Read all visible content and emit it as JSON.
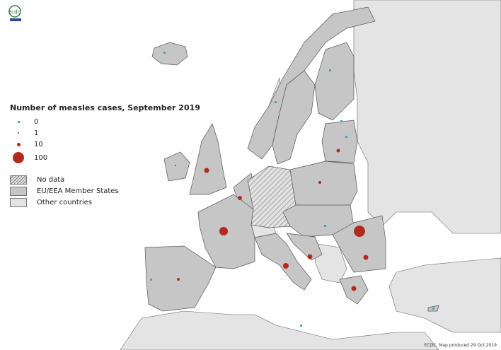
{
  "logo": {
    "text": "ecdc"
  },
  "legend": {
    "title": "Number of measles cases, September 2019",
    "sizes": [
      {
        "label": "0",
        "color": "#4aa3b5"
      },
      {
        "label": "1",
        "color": "#b22a1e"
      },
      {
        "label": "10",
        "color": "#b22a1e"
      },
      {
        "label": "100",
        "color": "#b22a1e"
      }
    ],
    "fills": [
      {
        "label": "No data",
        "pattern": "hatched"
      },
      {
        "label": "EU/EEA Member States",
        "color": "#c6c6c6"
      },
      {
        "label": "Other countries",
        "color": "#e4e4e4"
      }
    ]
  },
  "footer": "ECDC. Map produced 29 Oct 2019"
}
